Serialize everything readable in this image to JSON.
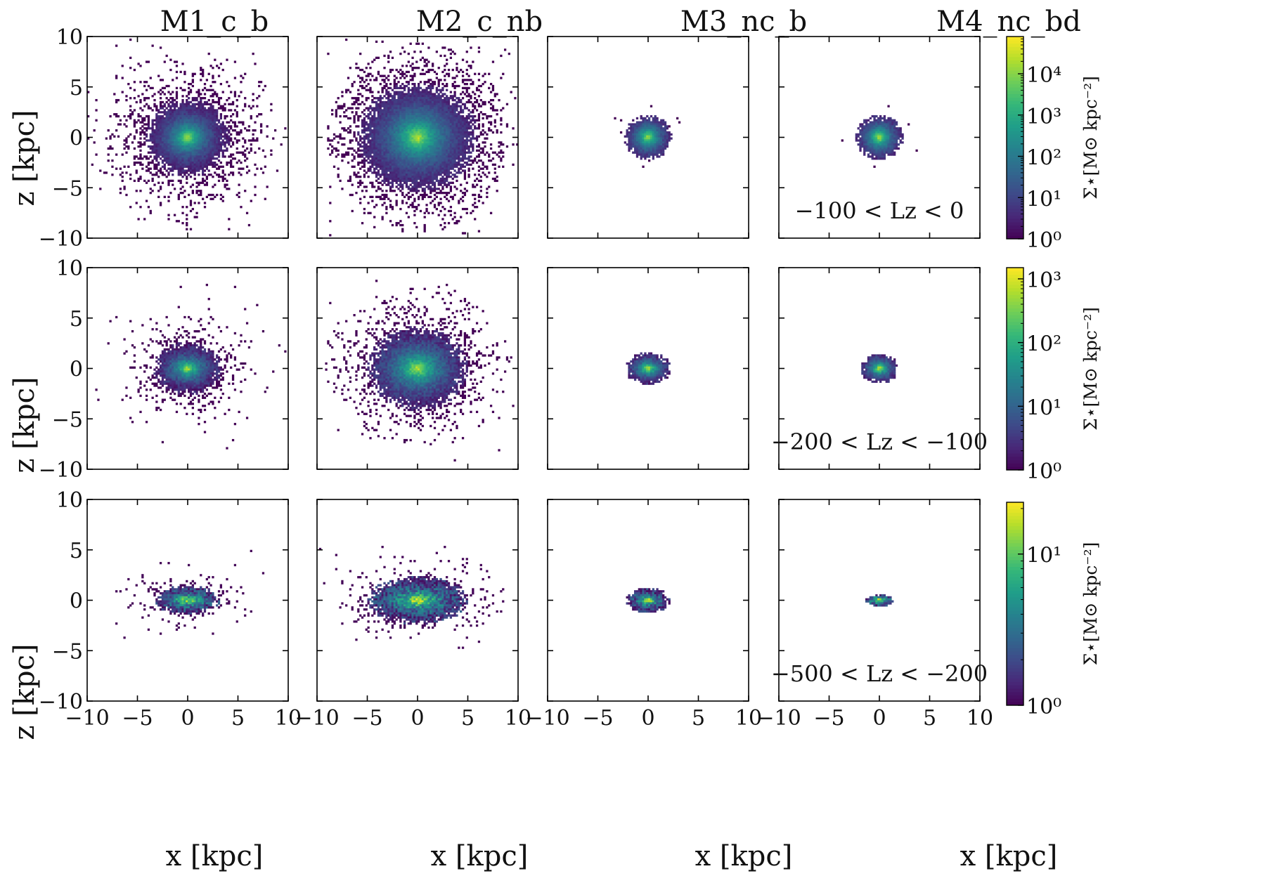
{
  "figure": {
    "column_titles": [
      "M1_c_b",
      "M2_c_nb",
      "M3_nc_b",
      "M4_nc_bd"
    ],
    "x_label": "x [kpc]",
    "y_label": "z [kpc]",
    "colorbar_label": "Σ⋆[M⊙ kpc⁻²]"
  },
  "chart_data": [
    {
      "type": "heatmap",
      "row": 0,
      "label": "−100 < Lz < 0",
      "colorbar": {
        "scale": "log",
        "range": [
          1,
          80000
        ],
        "ticks": [
          "10⁰",
          "10¹",
          "10²",
          "10³",
          "10⁴"
        ],
        "tick_values": [
          1,
          10,
          100,
          1000,
          10000
        ]
      },
      "panels": [
        {
          "model": "M1_c_b",
          "xlim": [
            -10,
            10
          ],
          "ylim": [
            -10,
            10
          ],
          "peak_log": 4.4,
          "scale_x": 1.5,
          "scale_y": 1.35,
          "core_x": 4.2,
          "core_y": 4.0,
          "halo": 0.45,
          "halo_rx": 10,
          "halo_ry": 10,
          "seed": 11
        },
        {
          "model": "M2_c_nb",
          "xlim": [
            -10,
            10
          ],
          "ylim": [
            -10,
            10
          ],
          "peak_log": 4.6,
          "scale_x": 2.2,
          "scale_y": 2.0,
          "core_x": 6.0,
          "core_y": 5.5,
          "halo": 0.4,
          "halo_rx": 9,
          "halo_ry": 9.5,
          "seed": 22
        },
        {
          "model": "M3_nc_b",
          "xlim": [
            -10,
            10
          ],
          "ylim": [
            -10,
            10
          ],
          "peak_log": 4.6,
          "scale_x": 1.0,
          "scale_y": 0.95,
          "core_x": 2.4,
          "core_y": 2.2,
          "halo": 0.02,
          "halo_rx": 4,
          "halo_ry": 4,
          "seed": 33
        },
        {
          "model": "M4_nc_bd",
          "xlim": [
            -10,
            10
          ],
          "ylim": [
            -10,
            10
          ],
          "peak_log": 4.7,
          "scale_x": 1.0,
          "scale_y": 0.95,
          "core_x": 2.4,
          "core_y": 2.2,
          "halo": 0.02,
          "halo_rx": 4,
          "halo_ry": 4,
          "seed": 44
        }
      ]
    },
    {
      "type": "heatmap",
      "row": 1,
      "label": "−200 < Lz < −100",
      "colorbar": {
        "scale": "log",
        "range": [
          1,
          1500
        ],
        "ticks": [
          "10⁰",
          "10¹",
          "10²",
          "10³"
        ],
        "tick_values": [
          1,
          10,
          100,
          1000
        ]
      },
      "panels": [
        {
          "model": "M1_c_b",
          "xlim": [
            -10,
            10
          ],
          "ylim": [
            -10,
            10
          ],
          "peak_log": 2.9,
          "scale_x": 1.3,
          "scale_y": 0.9,
          "core_x": 3.4,
          "core_y": 2.7,
          "halo": 0.3,
          "halo_rx": 10,
          "halo_ry": 10,
          "seed": 55
        },
        {
          "model": "M2_c_nb",
          "xlim": [
            -10,
            10
          ],
          "ylim": [
            -10,
            10
          ],
          "peak_log": 3.0,
          "scale_x": 2.0,
          "scale_y": 1.5,
          "core_x": 5.0,
          "core_y": 4.2,
          "halo": 0.3,
          "halo_rx": 9.5,
          "halo_ry": 8,
          "seed": 66
        },
        {
          "model": "M3_nc_b",
          "xlim": [
            -10,
            10
          ],
          "ylim": [
            -10,
            10
          ],
          "peak_log": 3.1,
          "scale_x": 0.9,
          "scale_y": 0.6,
          "core_x": 2.3,
          "core_y": 1.6,
          "halo": 0.0,
          "halo_rx": 3,
          "halo_ry": 3,
          "seed": 77
        },
        {
          "model": "M4_nc_bd",
          "xlim": [
            -10,
            10
          ],
          "ylim": [
            -10,
            10
          ],
          "peak_log": 3.1,
          "scale_x": 0.8,
          "scale_y": 0.6,
          "core_x": 1.9,
          "core_y": 1.5,
          "halo": 0.0,
          "halo_rx": 4,
          "halo_ry": 3,
          "seed": 88
        }
      ]
    },
    {
      "type": "heatmap",
      "row": 2,
      "label": "−500 < Lz < −200",
      "colorbar": {
        "scale": "log",
        "range": [
          1,
          22
        ],
        "ticks": [
          "10⁰",
          "10¹"
        ],
        "tick_values": [
          1,
          10
        ]
      },
      "panels": [
        {
          "model": "M1_c_b",
          "xlim": [
            -10,
            10
          ],
          "ylim": [
            -10,
            10
          ],
          "peak_log": 1.3,
          "scale_x": 1.5,
          "scale_y": 0.55,
          "core_x": 3.2,
          "core_y": 1.5,
          "halo": 0.2,
          "halo_rx": 9.5,
          "halo_ry": 9,
          "seed": 99
        },
        {
          "model": "M2_c_nb",
          "xlim": [
            -10,
            10
          ],
          "ylim": [
            -10,
            10
          ],
          "peak_log": 1.3,
          "scale_x": 2.2,
          "scale_y": 0.9,
          "core_x": 5.0,
          "core_y": 2.4,
          "halo": 0.15,
          "halo_rx": 8.5,
          "halo_ry": 6,
          "seed": 111
        },
        {
          "model": "M3_nc_b",
          "xlim": [
            -10,
            10
          ],
          "ylim": [
            -10,
            10
          ],
          "peak_log": 1.35,
          "scale_x": 0.9,
          "scale_y": 0.45,
          "core_x": 2.2,
          "core_y": 1.3,
          "halo": 0.0,
          "halo_rx": 3,
          "halo_ry": 2,
          "seed": 122
        },
        {
          "model": "M4_nc_bd",
          "xlim": [
            -10,
            10
          ],
          "ylim": [
            -10,
            10
          ],
          "peak_log": 1.35,
          "scale_x": 0.8,
          "scale_y": 0.3,
          "core_x": 1.5,
          "core_y": 0.6,
          "halo": 0.0,
          "halo_rx": 2,
          "halo_ry": 1,
          "seed": 133
        }
      ]
    }
  ],
  "axes": {
    "x_ticks": [
      -10,
      -5,
      0,
      5,
      10
    ],
    "y_ticks": [
      -10,
      -5,
      0,
      5,
      10
    ],
    "x_tick_labels": [
      "−10",
      "−5",
      "0",
      "5",
      "10"
    ],
    "y_tick_labels": [
      "−10",
      "−5",
      "0",
      "5",
      "10"
    ],
    "x_tick_labels_right_edge": [
      "10"
    ],
    "colormap": "viridis",
    "colormap_stops": [
      "#440154",
      "#482878",
      "#3e4a89",
      "#31688e",
      "#26828e",
      "#1f9e89",
      "#35b779",
      "#6ece58",
      "#b5de2b",
      "#fde725"
    ]
  }
}
